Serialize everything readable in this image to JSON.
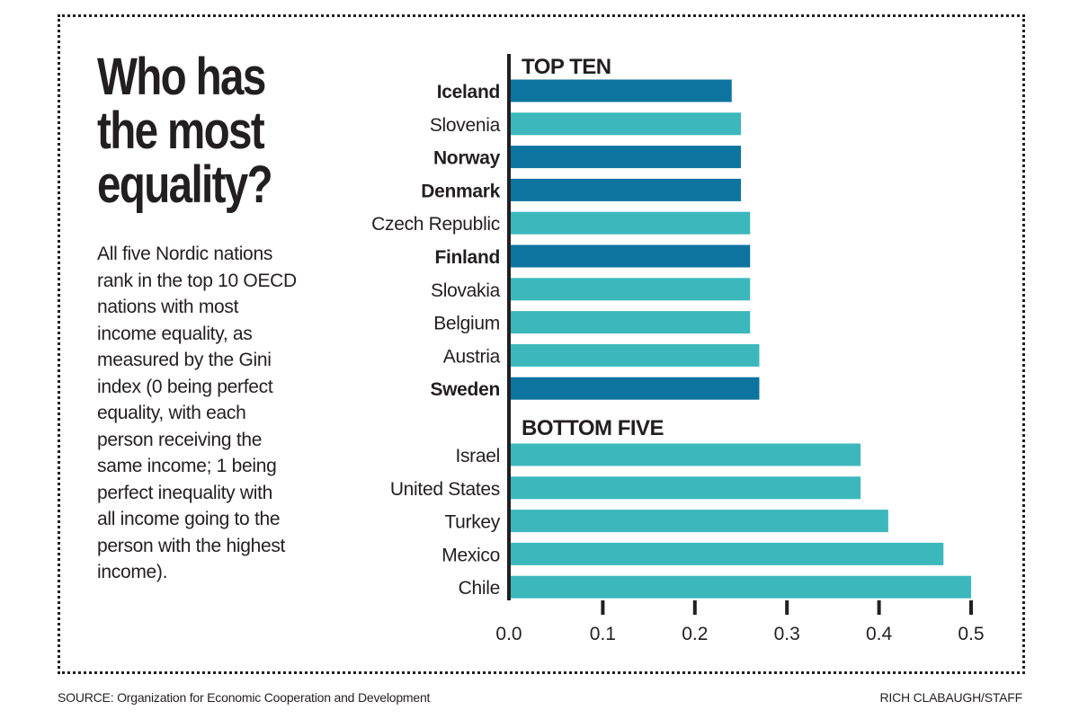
{
  "headline": {
    "line1": "Who has",
    "line2": "the most",
    "line3": "equality?"
  },
  "blurb": {
    "lines": [
      "All five Nordic nations",
      "rank in the top 10 OECD",
      "nations with most",
      "income equality, as",
      "measured by the Gini",
      "index (0 being perfect",
      "equality, with each",
      "person receiving the",
      "same income; 1 being",
      "perfect inequality with",
      "all income going to the",
      "person with the highest",
      "income)."
    ]
  },
  "colors": {
    "nordic": "#0d74a0",
    "other": "#3cb8bd",
    "axis": "#231f20",
    "text": "#231f20"
  },
  "chart_data": {
    "type": "bar",
    "orientation": "horizontal",
    "xlim": [
      0,
      0.5
    ],
    "ticks": [
      "0.0",
      "0.1",
      "0.2",
      "0.3",
      "0.4",
      "0.5"
    ],
    "tick_values": [
      0,
      0.1,
      0.2,
      0.3,
      0.4,
      0.5
    ],
    "groups": [
      {
        "label": "TOP TEN",
        "items": [
          {
            "country": "Iceland",
            "value": 0.24,
            "nordic": true
          },
          {
            "country": "Slovenia",
            "value": 0.25,
            "nordic": false
          },
          {
            "country": "Norway",
            "value": 0.25,
            "nordic": true
          },
          {
            "country": "Denmark",
            "value": 0.25,
            "nordic": true
          },
          {
            "country": "Czech Republic",
            "value": 0.26,
            "nordic": false
          },
          {
            "country": "Finland",
            "value": 0.26,
            "nordic": true
          },
          {
            "country": "Slovakia",
            "value": 0.26,
            "nordic": false
          },
          {
            "country": "Belgium",
            "value": 0.26,
            "nordic": false
          },
          {
            "country": "Austria",
            "value": 0.27,
            "nordic": false
          },
          {
            "country": "Sweden",
            "value": 0.27,
            "nordic": true
          }
        ]
      },
      {
        "label": "BOTTOM FIVE",
        "items": [
          {
            "country": "Israel",
            "value": 0.38,
            "nordic": false
          },
          {
            "country": "United States",
            "value": 0.38,
            "nordic": false
          },
          {
            "country": "Turkey",
            "value": 0.41,
            "nordic": false
          },
          {
            "country": "Mexico",
            "value": 0.47,
            "nordic": false
          },
          {
            "country": "Chile",
            "value": 0.5,
            "nordic": false
          }
        ]
      }
    ]
  },
  "footer": {
    "source": "SOURCE: Organization for Economic Cooperation and Development",
    "credit": "RICH CLABAUGH/STAFF"
  }
}
